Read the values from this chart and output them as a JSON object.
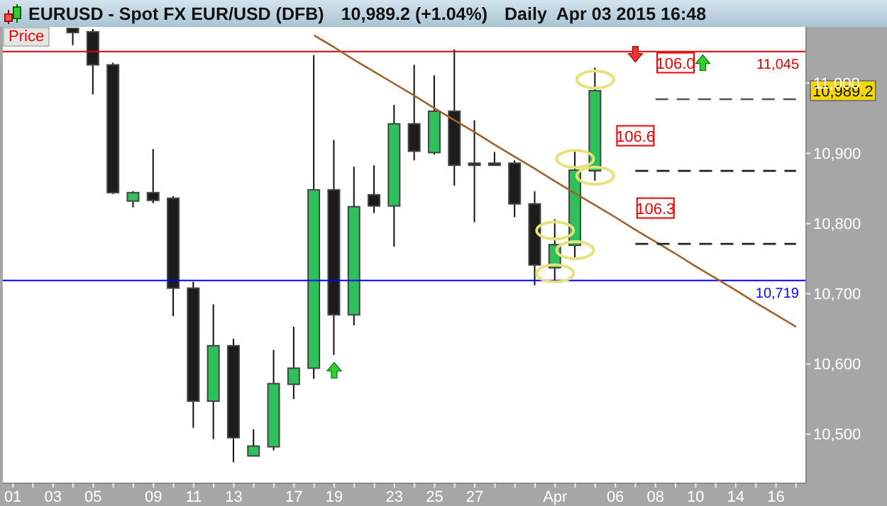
{
  "chart_data": {
    "type": "candlestick",
    "title": "EURUSD - Spot FX EUR/USD (DFB)",
    "subtitle": "10,989.2 (+1.04%)",
    "categories": [
      "01",
      null,
      "03",
      null,
      "05",
      null,
      null,
      "09",
      null,
      "11",
      null,
      "13",
      null,
      null,
      "17",
      null,
      "19",
      null,
      null,
      "23",
      null,
      "25",
      null,
      "27",
      null,
      null,
      null,
      "Apr",
      null,
      null,
      "06",
      null,
      "08",
      null,
      "10",
      null,
      "14",
      null,
      "16",
      null
    ],
    "ohlc": [
      null,
      null,
      null,
      [
        11078,
        11078,
        11054,
        11072
      ],
      [
        11073,
        11077,
        10984,
        11026
      ],
      [
        11026,
        11029,
        10842,
        10844
      ],
      [
        10832,
        10846,
        10823,
        10844
      ],
      [
        10844,
        10906,
        10829,
        10833
      ],
      [
        10836,
        10839,
        10668,
        10708
      ],
      [
        10708,
        10717,
        10509,
        10547
      ],
      [
        10547,
        10685,
        10493,
        10626
      ],
      [
        10626,
        10636,
        10460,
        10495
      ],
      [
        10469,
        10507,
        10469,
        10483
      ],
      [
        10482,
        10620,
        10477,
        10572
      ],
      [
        10571,
        10653,
        10550,
        10594
      ],
      [
        10594,
        11040,
        10579,
        10848
      ],
      [
        10848,
        10919,
        10613,
        10670
      ],
      [
        10670,
        10881,
        10655,
        10824
      ],
      [
        10841,
        10883,
        10815,
        10825
      ],
      [
        10825,
        10969,
        10767,
        10942
      ],
      [
        10942,
        11026,
        10890,
        10903
      ],
      [
        10901,
        11011,
        10898,
        10960
      ],
      [
        10960,
        11048,
        10854,
        10883
      ],
      [
        10886,
        10947,
        10802,
        10885
      ],
      [
        10886,
        10902,
        10883,
        10885
      ],
      [
        10886,
        10890,
        10809,
        10828
      ],
      [
        10828,
        10846,
        10712,
        10741
      ],
      [
        10737,
        10806,
        10719,
        10770
      ],
      [
        10769,
        10903,
        10752,
        10876
      ],
      [
        10875,
        11022,
        10861,
        10989.2
      ],
      null,
      null,
      null,
      null,
      null,
      null,
      null,
      null,
      null,
      null
    ],
    "colors": [
      null,
      null,
      null,
      "#1c1c1c",
      "#1c1c1c",
      "#1c1c1c",
      "#2ec05a",
      "#1c1c1c",
      "#1c1c1c",
      "#1c1c1c",
      "#2ec05a",
      "#1c1c1c",
      "#2ec05a",
      "#2ec05a",
      "#2ec05a",
      "#2ec05a",
      "#1c1c1c",
      "#2ec05a",
      "#1c1c1c",
      "#2ec05a",
      "#1c1c1c",
      "#2ec05a",
      "#1c1c1c",
      "#1c1c1c",
      "#1c1c1c",
      "#1c1c1c",
      "#1c1c1c",
      "#2ec05a",
      "#2ec05a",
      "#2ec05a",
      null,
      null,
      null,
      null,
      null,
      null,
      null,
      null,
      null,
      null
    ],
    "series": [
      {
        "type": "line",
        "color": "#a0622d",
        "line_style": "solid",
        "values": [
          null,
          null,
          null,
          null,
          null,
          null,
          null,
          null,
          null,
          null,
          null,
          null,
          null,
          null,
          null,
          11068,
          11051,
          11033,
          11016,
          10999,
          10982,
          10964,
          10947,
          10930,
          10912,
          10895,
          10878,
          10860,
          10843,
          10826,
          10809,
          10791,
          10774,
          10757,
          10739,
          10722,
          10705,
          10687,
          10670,
          10653
        ]
      },
      {
        "type": "line",
        "color": "#555555",
        "line_style": "dashed",
        "values": [
          null,
          null,
          null,
          null,
          null,
          null,
          null,
          null,
          null,
          null,
          null,
          null,
          null,
          null,
          null,
          null,
          null,
          null,
          null,
          null,
          null,
          null,
          null,
          null,
          null,
          null,
          null,
          null,
          null,
          null,
          null,
          null,
          10977,
          10977,
          10977,
          10977,
          10977,
          10977,
          10977,
          10977
        ]
      },
      {
        "type": "line",
        "color": "#222222",
        "line_style": "dashed",
        "values": [
          null,
          null,
          null,
          null,
          null,
          null,
          null,
          null,
          null,
          null,
          null,
          null,
          null,
          null,
          null,
          null,
          null,
          null,
          null,
          null,
          null,
          null,
          null,
          null,
          null,
          null,
          null,
          null,
          null,
          null,
          null,
          10875,
          10875,
          10875,
          10875,
          10875,
          10875,
          10875,
          10875,
          10875
        ]
      },
      {
        "type": "line",
        "color": "#222222",
        "line_style": "dashed",
        "values": [
          null,
          null,
          null,
          null,
          null,
          null,
          null,
          null,
          null,
          null,
          null,
          null,
          null,
          null,
          null,
          null,
          null,
          null,
          null,
          null,
          null,
          null,
          null,
          null,
          null,
          null,
          null,
          null,
          null,
          null,
          null,
          10771,
          10771,
          10771,
          10771,
          10771,
          10771,
          10771,
          10771,
          10771
        ]
      }
    ],
    "ref_lines": [
      {
        "axis": "y",
        "value": 11045,
        "label": "11,045",
        "color": "#e00000"
      },
      {
        "axis": "y",
        "value": 10719,
        "label": "10,719",
        "color": "#0000ff"
      }
    ],
    "annotations": [
      "Daily  Apr 03 2015 16:48",
      "Price",
      {
        "text": "106.0",
        "y": 11029
      },
      {
        "text": "106.6",
        "y": 10925
      },
      {
        "text": "106.3",
        "y": 10822
      },
      "10,989.2"
    ],
    "ylim": [
      10430,
      11080
    ],
    "yticks": [
      {
        "value": 10500,
        "label": "10,500"
      },
      {
        "value": 10600,
        "label": "10,600"
      },
      {
        "value": 10700,
        "label": "10,700"
      },
      {
        "value": 10800,
        "label": "10,800"
      },
      {
        "value": 10900,
        "label": "10,900"
      },
      {
        "value": 11000,
        "label": "11,000"
      }
    ],
    "grid": false
  }
}
